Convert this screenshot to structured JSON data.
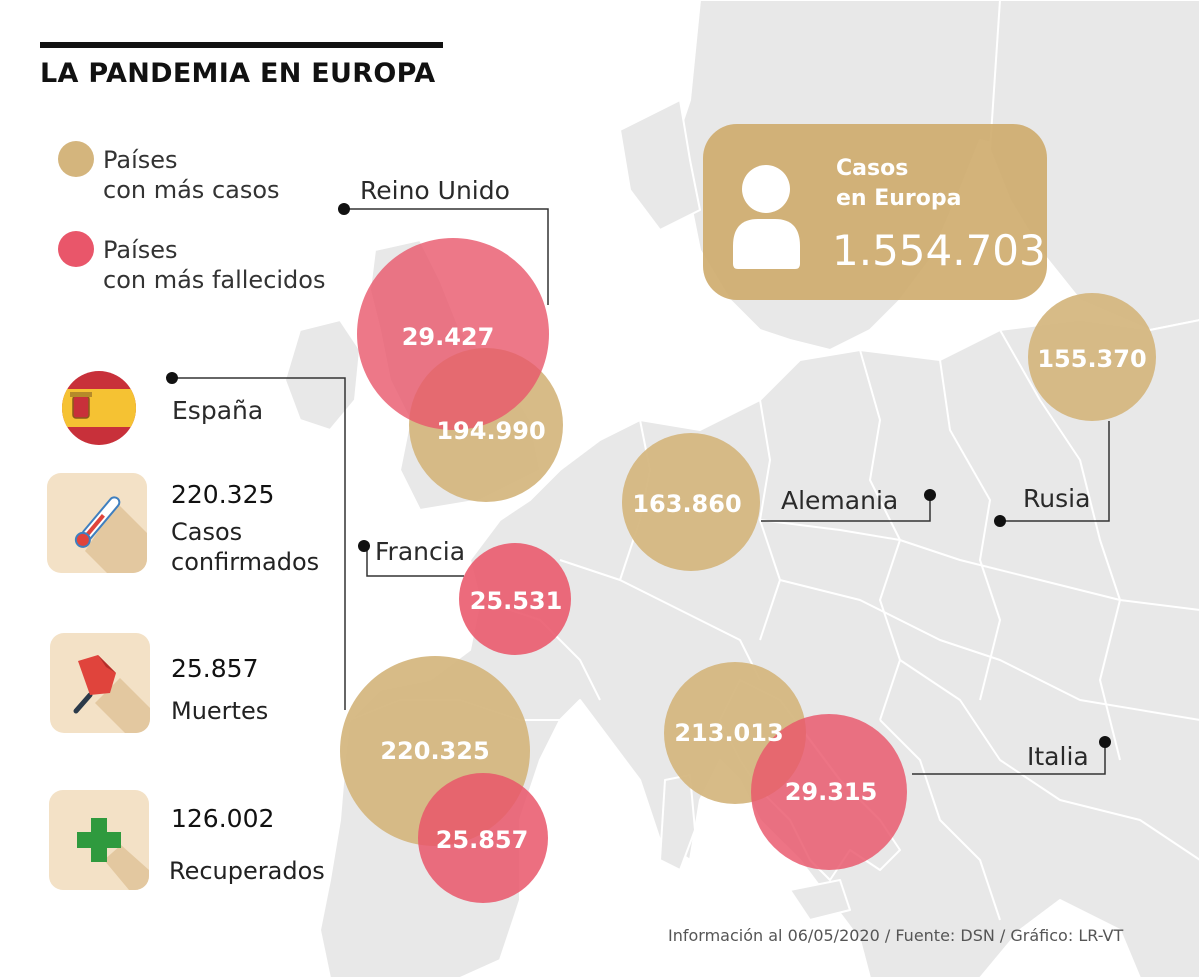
{
  "title": "LA PANDEMIA EN EUROPA",
  "colors": {
    "cases": "#d4b57d",
    "deaths": "#e9566a",
    "box": "#cfa86a",
    "map_land": "#e9e9e9",
    "map_sea": "#ffffff",
    "borders": "#ffffff"
  },
  "legend": {
    "cases_line1": "Países",
    "cases_line2": "con más casos",
    "deaths_line1": "Países",
    "deaths_line2": "con más fallecidos"
  },
  "europe": {
    "label_line1": "Casos",
    "label_line2": "en Europa",
    "total": "1.554.703",
    "icon": "person-icon"
  },
  "countries": {
    "uk": {
      "name": "Reino Unido",
      "deaths": "29.427",
      "cases": "194.990"
    },
    "germany": {
      "name": "Alemania",
      "cases": "163.860"
    },
    "russia": {
      "name": "Rusia",
      "cases": "155.370"
    },
    "france": {
      "name": "Francia",
      "deaths": "25.531"
    },
    "spain": {
      "name": "España",
      "cases": "220.325",
      "deaths": "25.857"
    },
    "italy": {
      "name": "Italia",
      "cases": "213.013",
      "deaths": "29.315"
    }
  },
  "spain_stats": {
    "flag_icon": "spain-flag-icon",
    "confirmed": {
      "value": "220.325",
      "label_line1": "Casos",
      "label_line2": "confirmados",
      "icon": "thermometer-icon"
    },
    "deaths": {
      "value": "25.857",
      "label": "Muertes",
      "icon": "pushpin-icon"
    },
    "recovered": {
      "value": "126.002",
      "label": "Recuperados",
      "icon": "cross-icon"
    }
  },
  "footer": "Información al 06/05/2020 / Fuente: DSN / Gráfico: LR-VT"
}
